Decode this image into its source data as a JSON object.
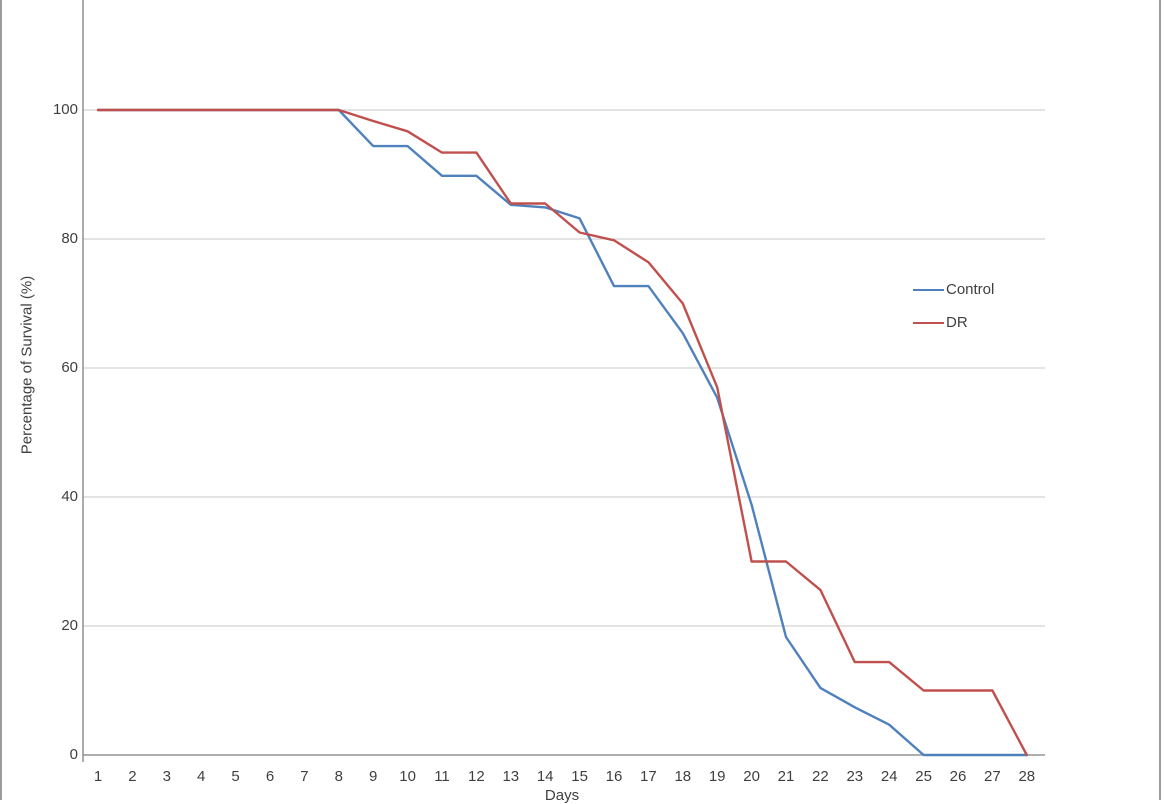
{
  "chart_data": {
    "type": "line",
    "title": "",
    "xlabel": "Days",
    "ylabel": "Percentage of Survival (%)",
    "x": [
      1,
      2,
      3,
      4,
      5,
      6,
      7,
      8,
      9,
      10,
      11,
      12,
      13,
      14,
      15,
      16,
      17,
      18,
      19,
      20,
      21,
      22,
      23,
      24,
      25,
      26,
      27,
      28
    ],
    "series": [
      {
        "name": "Control",
        "color": "#4F81BD",
        "values": [
          100,
          100,
          100,
          100,
          100,
          100,
          100,
          100,
          94.4,
          94.4,
          89.8,
          89.8,
          85.3,
          84.9,
          83.2,
          72.7,
          72.7,
          65.4,
          55.4,
          38.8,
          18.3,
          10.4,
          7.4,
          4.7,
          0,
          0,
          0,
          0
        ]
      },
      {
        "name": "DR",
        "color": "#C0504D",
        "values": [
          100,
          100,
          100,
          100,
          100,
          100,
          100,
          100,
          98.3,
          96.7,
          93.4,
          93.4,
          85.5,
          85.5,
          81,
          79.8,
          76.4,
          70,
          57,
          30,
          30,
          25.6,
          14.4,
          14.4,
          10,
          10,
          10,
          0
        ]
      }
    ],
    "yticks": [
      0,
      20,
      40,
      60,
      80,
      100
    ],
    "ylim": [
      0,
      100
    ],
    "xlim": [
      1,
      28
    ],
    "grid": "horizontal",
    "legend_position": "right-inside",
    "colors": {
      "gridline": "#c8c8c8",
      "axis": "#7f7f7f",
      "text": "#3f3f3f",
      "frame_border": "#9b9b9b",
      "background": "#ffffff"
    }
  }
}
